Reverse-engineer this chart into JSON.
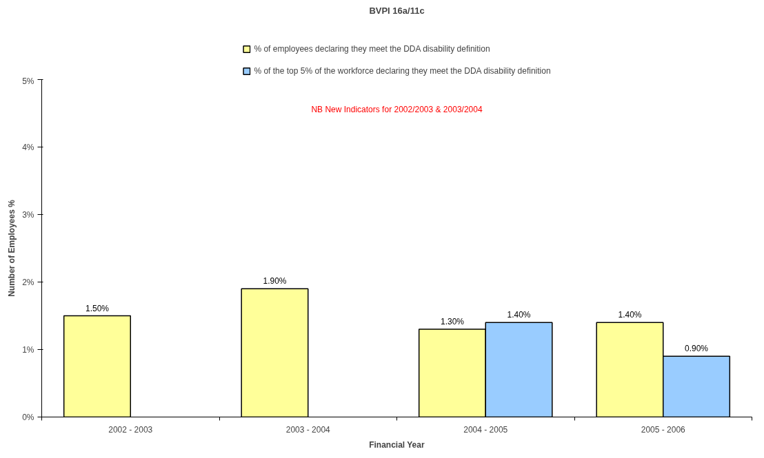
{
  "chart_data": {
    "type": "bar",
    "title": "BVPI 16a/11c",
    "xlabel": "Financial Year",
    "ylabel": "Number of Employees %",
    "categories": [
      "2002 - 2003",
      "2003 - 2004",
      "2004 - 2005",
      "2005 - 2006"
    ],
    "series": [
      {
        "name": "% of employees declaring they meet the DDA disability definition",
        "color": "#ffff99",
        "values": [
          1.5,
          1.9,
          1.3,
          1.4
        ],
        "value_labels": [
          "1.50%",
          "1.90%",
          "1.30%",
          "1.40%"
        ]
      },
      {
        "name": "% of the top 5% of the workforce declaring they meet the DDA disability definition",
        "color": "#99ccff",
        "values": [
          null,
          null,
          1.4,
          0.9
        ],
        "value_labels": [
          null,
          null,
          "1.40%",
          "0.90%"
        ]
      }
    ],
    "ylim": [
      0,
      5
    ],
    "yticks": [
      {
        "value": 0,
        "label": "0%"
      },
      {
        "value": 1,
        "label": "1%"
      },
      {
        "value": 2,
        "label": "2%"
      },
      {
        "value": 3,
        "label": "3%"
      },
      {
        "value": 4,
        "label": "4%"
      },
      {
        "value": 5,
        "label": "5%"
      }
    ],
    "annotations": [
      "NB New Indicators for 2002/2003 & 2003/2004"
    ],
    "grid": false,
    "legend": "top"
  }
}
